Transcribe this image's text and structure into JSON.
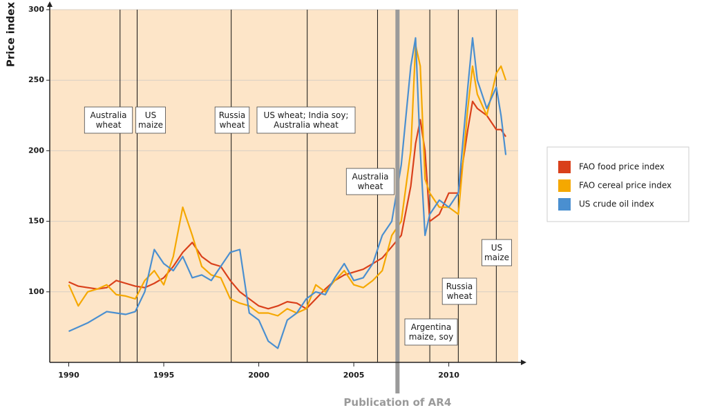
{
  "chart_data": {
    "type": "line",
    "y_label": "Price index",
    "x": [
      1990,
      1990.5,
      1991,
      1991.5,
      1992,
      1992.5,
      1993,
      1993.5,
      1994,
      1994.5,
      1995,
      1995.5,
      1996,
      1996.5,
      1997,
      1997.5,
      1998,
      1998.5,
      1999,
      1999.5,
      2000,
      2000.5,
      2001,
      2001.5,
      2002,
      2002.5,
      2003,
      2003.5,
      2004,
      2004.5,
      2005,
      2005.5,
      2006,
      2006.5,
      2007,
      2007.5,
      2008,
      2008.25,
      2008.5,
      2008.75,
      2009,
      2009.5,
      2010,
      2010.5,
      2011,
      2011.25,
      2011.5,
      2012,
      2012.5,
      2012.75,
      2013
    ],
    "series": [
      {
        "name": "FAO food price index",
        "color": "#d9401b",
        "values": [
          107,
          104,
          103,
          102,
          103,
          108,
          106,
          104,
          103,
          106,
          110,
          118,
          128,
          135,
          125,
          120,
          118,
          108,
          100,
          95,
          90,
          88,
          90,
          93,
          92,
          88,
          95,
          102,
          108,
          112,
          114,
          116,
          120,
          124,
          132,
          140,
          175,
          205,
          222,
          200,
          150,
          155,
          170,
          170,
          215,
          235,
          230,
          225,
          215,
          215,
          210
        ]
      },
      {
        "name": "FAO cereal price index",
        "color": "#f5a800",
        "values": [
          105,
          90,
          100,
          102,
          105,
          98,
          97,
          95,
          108,
          115,
          105,
          125,
          160,
          140,
          118,
          112,
          110,
          95,
          92,
          90,
          85,
          85,
          83,
          88,
          85,
          88,
          105,
          100,
          108,
          115,
          105,
          103,
          108,
          115,
          140,
          150,
          200,
          275,
          260,
          180,
          170,
          160,
          160,
          155,
          230,
          260,
          240,
          225,
          255,
          260,
          250
        ]
      },
      {
        "name": "US crude oil index",
        "color": "#4a8fd0",
        "values": [
          72,
          75,
          78,
          82,
          86,
          85,
          84,
          86,
          100,
          130,
          120,
          115,
          125,
          110,
          112,
          108,
          118,
          128,
          130,
          85,
          80,
          65,
          60,
          80,
          85,
          95,
          100,
          98,
          110,
          120,
          108,
          110,
          120,
          140,
          150,
          190,
          260,
          280,
          200,
          140,
          155,
          165,
          160,
          170,
          245,
          280,
          250,
          230,
          245,
          225,
          197
        ]
      }
    ],
    "xlim": [
      1989,
      2013.65
    ],
    "xticks": [
      1990,
      1995,
      2000,
      2005,
      2010
    ],
    "ylim": [
      50,
      300
    ],
    "yticks": [
      100,
      150,
      200,
      250,
      300
    ],
    "grid": true,
    "events": [
      {
        "x": 1992.7,
        "lines": [
          "Australia",
          "wheat"
        ]
      },
      {
        "x": 1993.6,
        "lines": [
          "US",
          "maize"
        ]
      },
      {
        "x": 1998.55,
        "lines": [
          "Russia",
          "wheat"
        ]
      },
      {
        "x": 2002.55,
        "lines": [
          "US wheat; India soy;",
          "Australia wheat"
        ]
      },
      {
        "x": 2006.25,
        "lines": [
          "Australia",
          "wheat"
        ]
      },
      {
        "x": 2009.0,
        "lines": [
          "Argentina",
          "maize, soy"
        ]
      },
      {
        "x": 2010.5,
        "lines": [
          "Russia",
          "wheat"
        ]
      },
      {
        "x": 2012.5,
        "lines": [
          "US",
          "maize"
        ]
      }
    ],
    "publication": {
      "x": 2007.3,
      "label": "Publication of AR4"
    }
  }
}
